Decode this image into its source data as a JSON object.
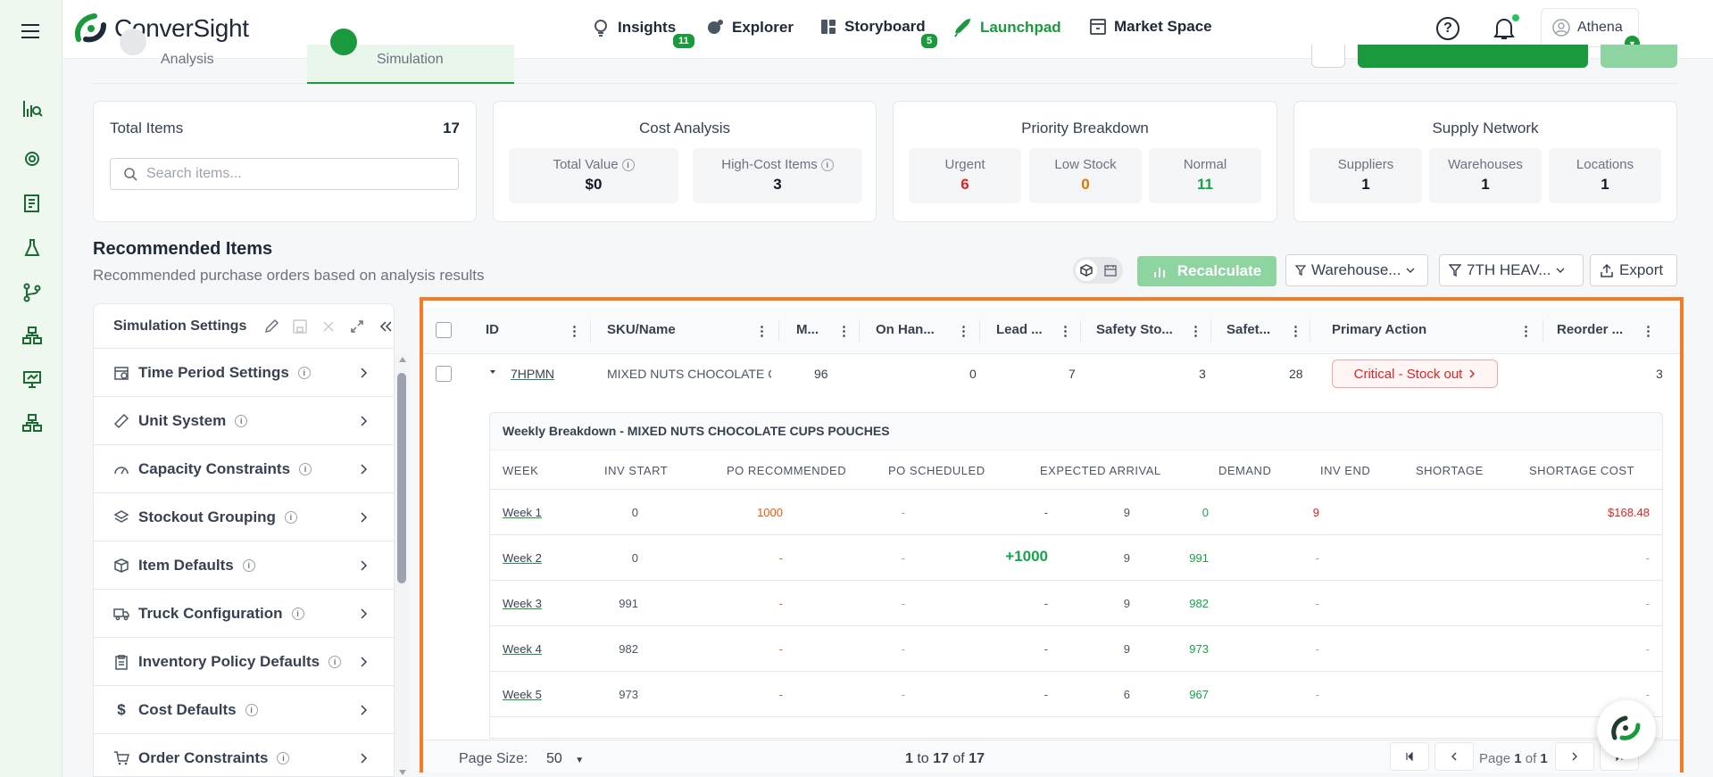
{
  "app": {
    "brand": "ConverSight",
    "accent": "#1a9a3c"
  },
  "nav": [
    {
      "label": "Insights",
      "badge": "11"
    },
    {
      "label": "Explorer"
    },
    {
      "label": "Storyboard",
      "badge": "5"
    },
    {
      "label": "Launchpad",
      "active": true
    },
    {
      "label": "Market Space"
    }
  ],
  "user": {
    "name": "Athena"
  },
  "tabs": {
    "analysis": "Analysis",
    "simulation": "Simulation"
  },
  "cards": {
    "total_items": {
      "label": "Total Items",
      "value": "17",
      "search_placeholder": "Search items..."
    },
    "cost": {
      "title": "Cost Analysis",
      "total_value_label": "Total Value",
      "total_value": "$0",
      "high_cost_label": "High-Cost Items",
      "high_cost": "3"
    },
    "priority": {
      "title": "Priority Breakdown",
      "urgent_label": "Urgent",
      "urgent": "6",
      "low_label": "Low Stock",
      "low": "0",
      "normal_label": "Normal",
      "normal": "11"
    },
    "supply": {
      "title": "Supply Network",
      "suppliers_label": "Suppliers",
      "suppliers": "1",
      "warehouses_label": "Warehouses",
      "warehouses": "1",
      "locations_label": "Locations",
      "locations": "1"
    }
  },
  "recommended": {
    "title": "Recommended Items",
    "subtitle": "Recommended purchase orders based on analysis results",
    "recalculate": "Recalculate",
    "warehouse_filter": "Warehouse...",
    "heav_filter": "7TH HEAV...",
    "export": "Export"
  },
  "settings": {
    "title": "Simulation Settings",
    "items": [
      "Time Period Settings",
      "Unit System",
      "Capacity Constraints",
      "Stockout Grouping",
      "Item Defaults",
      "Truck Configuration",
      "Inventory Policy Defaults",
      "Cost Defaults",
      "Order Constraints"
    ]
  },
  "grid": {
    "columns": [
      "ID",
      "SKU/Name",
      "M...",
      "On Han...",
      "Lead ...",
      "Safety Sto...",
      "Safet...",
      "Primary Action",
      "Reorder ..."
    ],
    "row": {
      "id": "7HPMN",
      "sku": "MIXED NUTS CHOCOLATE CU",
      "m": "96",
      "on_hand": "0",
      "lead": "7",
      "safety_stock": "3",
      "safety2": "28",
      "action": "Critical - Stock out",
      "reorder": "3"
    },
    "weekly": {
      "title": "Weekly Breakdown - MIXED NUTS CHOCOLATE CUPS POUCHES",
      "headers": [
        "WEEK",
        "INV START",
        "PO RECOMMENDED",
        "PO SCHEDULED",
        "EXPECTED ARRIVAL",
        "DEMAND",
        "INV END",
        "SHORTAGE",
        "SHORTAGE COST"
      ],
      "rows": [
        {
          "week": "Week 1",
          "inv_start": "0",
          "po_rec": "1000",
          "po_sched": "-",
          "arrival": "-",
          "demand": "9",
          "inv_end": "0",
          "shortage": "9",
          "cost": "$168.48"
        },
        {
          "week": "Week 2",
          "inv_start": "0",
          "po_rec": "-",
          "po_sched": "-",
          "arrival": "+1000",
          "demand": "9",
          "inv_end": "991",
          "shortage": "-",
          "cost": "-"
        },
        {
          "week": "Week 3",
          "inv_start": "991",
          "po_rec": "-",
          "po_sched": "-",
          "arrival": "-",
          "demand": "9",
          "inv_end": "982",
          "shortage": "-",
          "cost": "-"
        },
        {
          "week": "Week 4",
          "inv_start": "982",
          "po_rec": "-",
          "po_sched": "-",
          "arrival": "-",
          "demand": "9",
          "inv_end": "973",
          "shortage": "-",
          "cost": "-"
        },
        {
          "week": "Week 5",
          "inv_start": "973",
          "po_rec": "-",
          "po_sched": "-",
          "arrival": "-",
          "demand": "6",
          "inv_end": "967",
          "shortage": "-",
          "cost": "-"
        }
      ]
    },
    "footer": {
      "page_size_label": "Page Size:",
      "page_size": "50",
      "range_from": "1",
      "range_to": "17",
      "range_total": "17",
      "page_label": "Page",
      "page": "1",
      "page_total": "1"
    }
  }
}
